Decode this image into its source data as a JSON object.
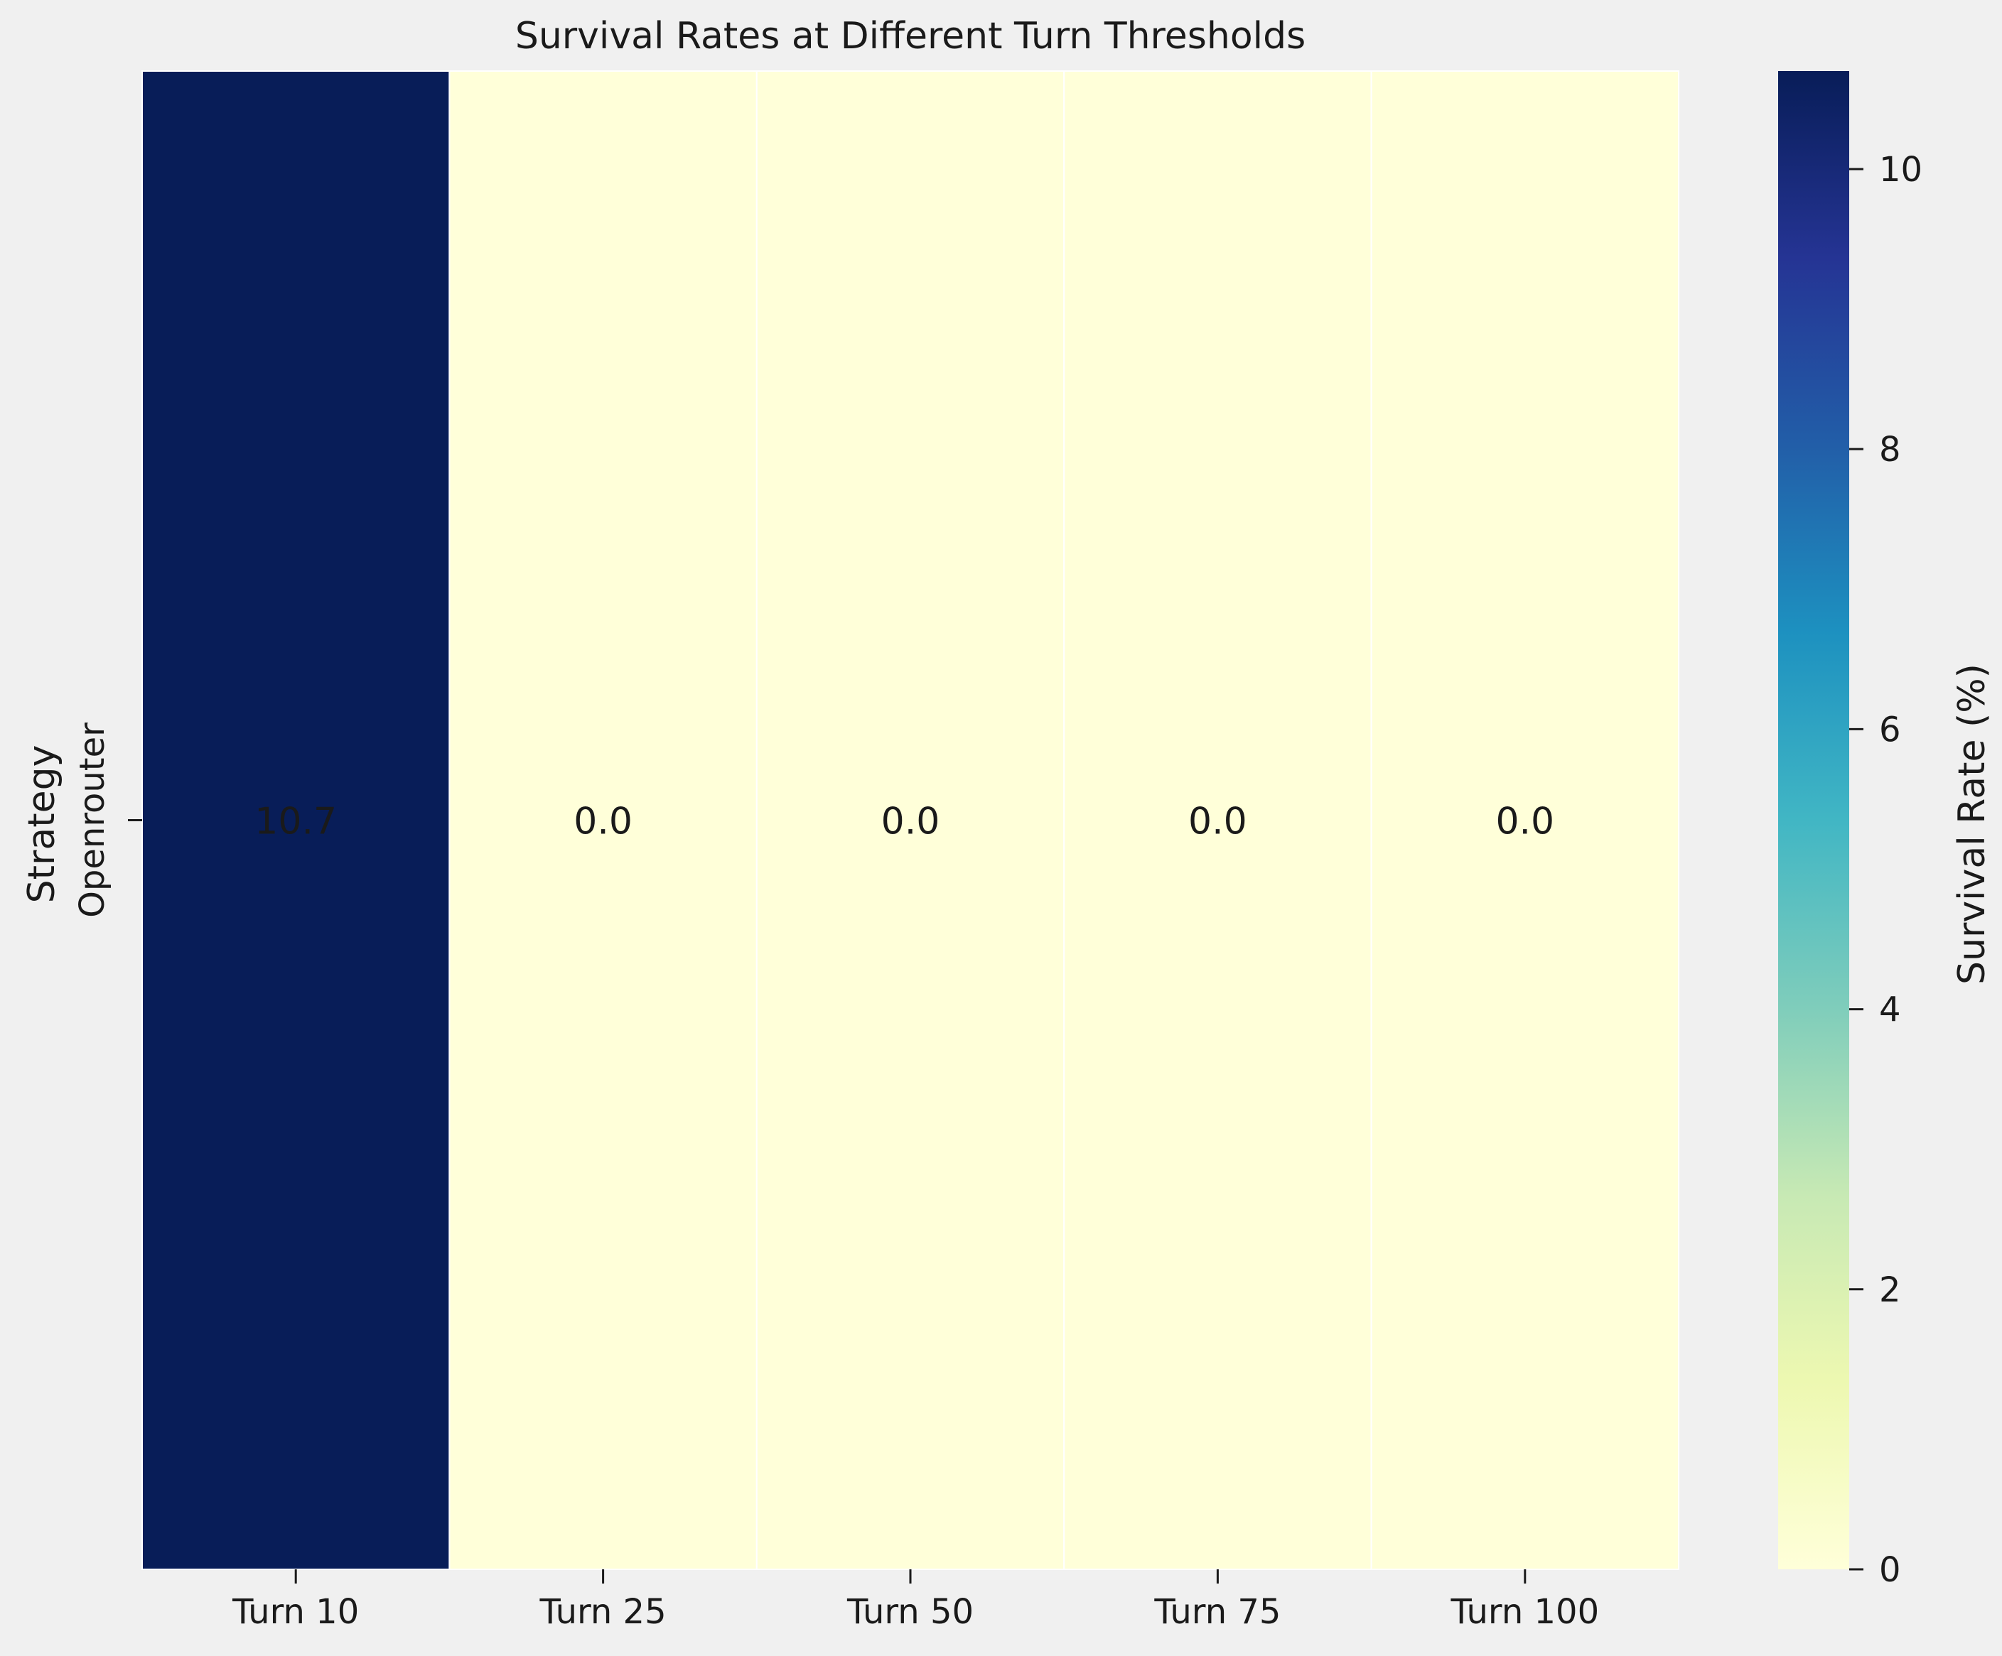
{
  "chart_data": {
    "type": "heatmap",
    "title": "Survival Rates at Different Turn Thresholds",
    "xlabel": "",
    "ylabel": "Strategy",
    "columns": [
      "Turn 10",
      "Turn 25",
      "Turn 50",
      "Turn 75",
      "Turn 100"
    ],
    "rows": [
      "Openrouter"
    ],
    "values": [
      [
        10.7,
        0.0,
        0.0,
        0.0,
        0.0
      ]
    ],
    "cell_labels": [
      [
        "10.7",
        "0.0",
        "0.0",
        "0.0",
        "0.0"
      ]
    ],
    "colorbar": {
      "label": "Survival Rate (%)",
      "colormap": "YlGnBu",
      "range": [
        0,
        10.7
      ],
      "ticks": [
        0,
        2,
        4,
        6,
        8,
        10
      ],
      "tick_labels": [
        "0",
        "2",
        "4",
        "6",
        "8",
        "10"
      ]
    },
    "colors": {
      "low": "#ffffd9",
      "high": "#081d58",
      "background": "#f0f0f0"
    }
  }
}
